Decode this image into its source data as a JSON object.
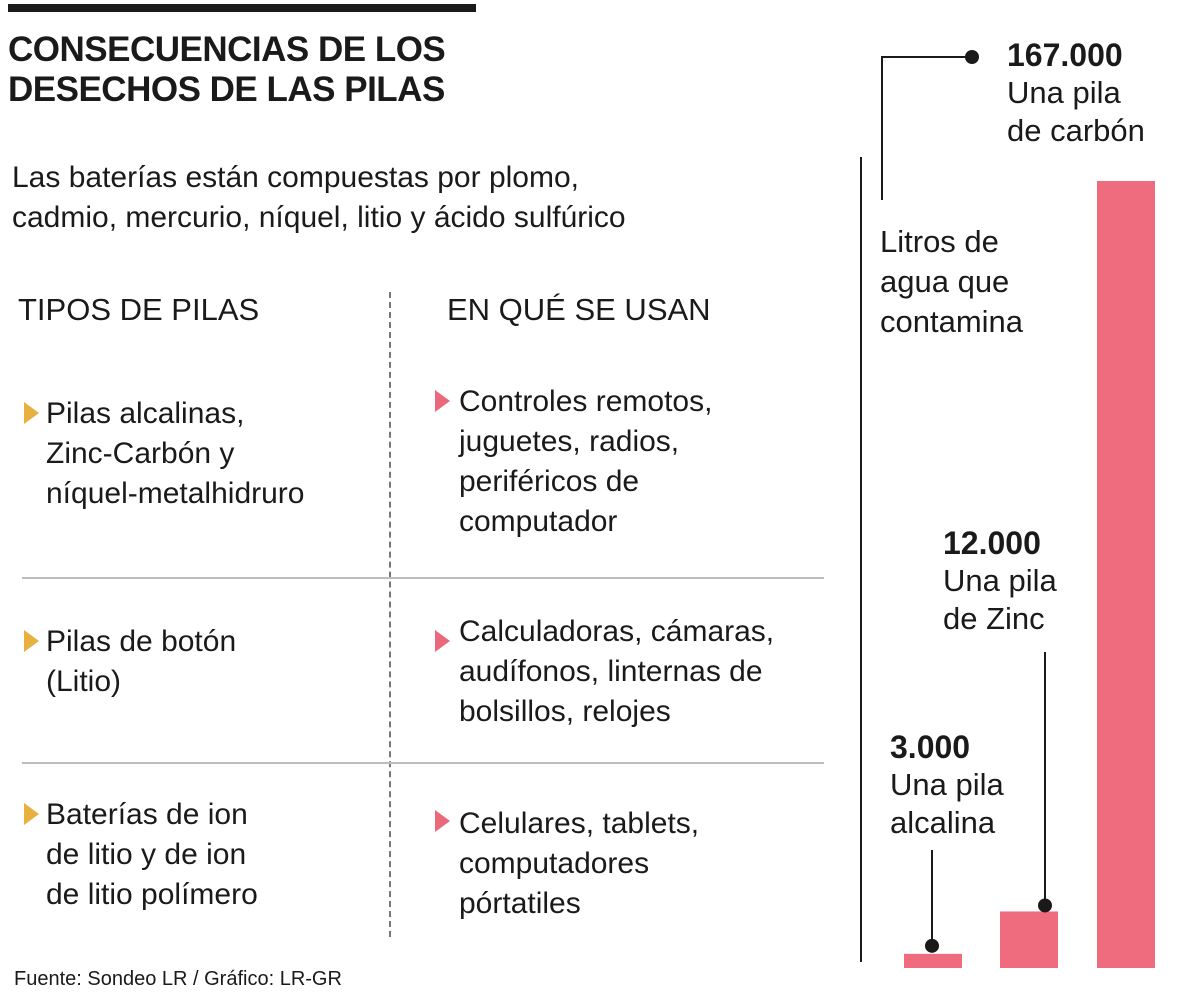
{
  "header": {
    "title_line1": "CONSECUENCIAS DE LOS",
    "title_line2": "DESECHOS DE LAS PILAS",
    "subtitle_line1": "Las baterías están compuestas por plomo,",
    "subtitle_line2": "cadmio, mercurio, níquel, litio y ácido sulfúrico"
  },
  "table": {
    "headers": [
      "TIPOS DE PILAS",
      "EN QUÉ SE USAN"
    ],
    "rows": [
      {
        "type": [
          "Pilas alcalinas,",
          "Zinc-Carbón y",
          "níquel-metalhidruro"
        ],
        "uses": [
          "Controles remotos,",
          "juguetes, radios,",
          "periféricos de",
          "computador"
        ]
      },
      {
        "type": [
          "Pilas de botón",
          "(Litio)"
        ],
        "uses": [
          "Calculadoras, cámaras,",
          "audífonos, linternas de",
          "bolsillos, relojes"
        ]
      },
      {
        "type": [
          "Baterías de ion",
          "de litio y de ion",
          "de litio polímero"
        ],
        "uses": [
          "Celulares, tablets,",
          "computadores",
          "pórtatiles"
        ]
      }
    ]
  },
  "chart_data": {
    "type": "bar",
    "unit_label": [
      "Litros de",
      "agua que",
      "contamina"
    ],
    "categories": [
      "Una pila alcalina",
      "Una pila de Zinc",
      "Una pila de carbón"
    ],
    "category_lines": [
      [
        "Una pila",
        "alcalina"
      ],
      [
        "Una pila",
        "de Zinc"
      ],
      [
        "Una pila",
        "de carbón"
      ]
    ],
    "value_labels": [
      "3.000",
      "12.000",
      "167.000"
    ],
    "values": [
      3000,
      12000,
      167000
    ],
    "colors": {
      "bar": "#ef6b7e",
      "axis": "#1a1a1a"
    }
  },
  "footer": {
    "source": "Fuente: Sondeo LR / Gráfico: LR-GR"
  }
}
